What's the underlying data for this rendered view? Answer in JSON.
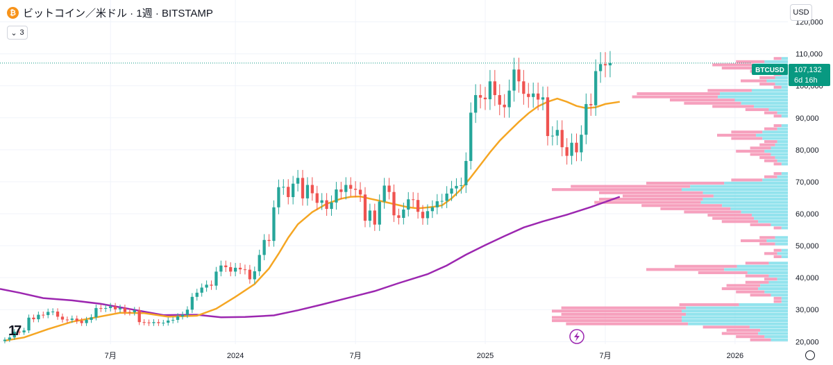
{
  "header": {
    "symbol_icon": "bitcoin-icon",
    "title": "ビットコイン／米ドル · 1週 · BITSTAMP",
    "indicator_toggle": "3",
    "currency": "USD"
  },
  "price_tag": {
    "ticker": "BTCUSD",
    "price": "107,132",
    "countdown": "6d 16h"
  },
  "colors": {
    "up": "#26a69a",
    "down": "#ef5350",
    "ma_fast": "#f5a623",
    "ma_slow": "#9c27b0",
    "vp_up": "#80deea",
    "vp_down": "#f48fb1",
    "price_line": "#089981"
  },
  "chart_data": {
    "type": "candlestick",
    "symbol": "BTCUSD",
    "y_ticks": [
      20000,
      30000,
      40000,
      50000,
      60000,
      70000,
      80000,
      90000,
      100000,
      110000,
      120000
    ],
    "y_tick_labels": [
      "20,000",
      "30,000",
      "40,000",
      "50,000",
      "60,000",
      "70,000",
      "80,000",
      "90,000",
      "100,000",
      "110,000",
      "120,000"
    ],
    "ylim": [
      19200,
      122500
    ],
    "x_labels": [
      {
        "week": 22,
        "label": "7月"
      },
      {
        "week": 48,
        "label": "2024"
      },
      {
        "week": 73,
        "label": "7月"
      },
      {
        "week": 100,
        "label": "2025"
      },
      {
        "week": 125,
        "label": "7月"
      },
      {
        "week": 152,
        "label": "2026"
      }
    ],
    "xlim": [
      -1,
      163
    ],
    "last_price": 107132,
    "closes": [
      20600,
      21300,
      23100,
      22900,
      23500,
      27500,
      27000,
      28400,
      28300,
      29300,
      29400,
      27800,
      26900,
      26800,
      27200,
      26500,
      25800,
      26800,
      27600,
      30500,
      30300,
      30500,
      31000,
      30100,
      30500,
      29300,
      29200,
      29800,
      26100,
      26000,
      25800,
      26100,
      25800,
      25900,
      26600,
      26800,
      27900,
      28400,
      30000,
      34000,
      35300,
      36900,
      37800,
      37500,
      41900,
      43800,
      43300,
      41900,
      43100,
      42600,
      42500,
      39500,
      42000,
      47100,
      51800,
      51500,
      62000,
      68300,
      68400,
      65200,
      69400,
      71200,
      64800,
      69000,
      66400,
      63400,
      64200,
      61500,
      63500,
      67600,
      66800,
      69000,
      67800,
      67500,
      66000,
      57800,
      61000,
      56600,
      63800,
      68800,
      66800,
      59500,
      58700,
      61300,
      64500,
      64300,
      60600,
      58600,
      60800,
      62000,
      63900,
      64000,
      66300,
      67900,
      68700,
      68900,
      76500,
      91600,
      97100,
      96300,
      95800,
      101400,
      97100,
      94100,
      93300,
      98500,
      105100,
      101400,
      97500,
      96500,
      97600,
      95700,
      96400,
      84300,
      84400,
      86200,
      80800,
      78100,
      82200,
      79200,
      84700,
      94300,
      93900,
      104600,
      106800,
      106400,
      107132
    ],
    "ma_fast_points": [
      [
        0,
        20300
      ],
      [
        4,
        21300
      ],
      [
        9,
        23900
      ],
      [
        14,
        26200
      ],
      [
        19,
        27600
      ],
      [
        24,
        29000
      ],
      [
        29,
        28900
      ],
      [
        34,
        27800
      ],
      [
        40,
        28100
      ],
      [
        44,
        30300
      ],
      [
        48,
        34000
      ],
      [
        52,
        38000
      ],
      [
        55,
        42900
      ],
      [
        57,
        47500
      ],
      [
        59,
        52500
      ],
      [
        61,
        56700
      ],
      [
        64,
        60500
      ],
      [
        67,
        63100
      ],
      [
        70,
        64700
      ],
      [
        72,
        65300
      ],
      [
        74,
        65400
      ],
      [
        76,
        64700
      ],
      [
        79,
        63700
      ],
      [
        82,
        62700
      ],
      [
        84,
        62000
      ],
      [
        86,
        61700
      ],
      [
        89,
        62100
      ],
      [
        91,
        62600
      ],
      [
        93,
        64800
      ],
      [
        95,
        67700
      ],
      [
        97,
        71400
      ],
      [
        99,
        75300
      ],
      [
        101,
        79200
      ],
      [
        103,
        82800
      ],
      [
        105,
        85800
      ],
      [
        107,
        88700
      ],
      [
        109,
        91400
      ],
      [
        111,
        93600
      ],
      [
        113,
        95000
      ],
      [
        115,
        96000
      ],
      [
        117,
        95000
      ],
      [
        119,
        93700
      ],
      [
        121,
        93000
      ],
      [
        123,
        93300
      ],
      [
        125,
        94300
      ],
      [
        128,
        95000
      ]
    ],
    "ma_slow_points": [
      [
        -1,
        36500
      ],
      [
        3,
        35300
      ],
      [
        8,
        33600
      ],
      [
        14,
        32900
      ],
      [
        20,
        31800
      ],
      [
        26,
        30200
      ],
      [
        33,
        28300
      ],
      [
        40,
        28400
      ],
      [
        45,
        27600
      ],
      [
        50,
        27700
      ],
      [
        56,
        28200
      ],
      [
        61,
        29800
      ],
      [
        66,
        31600
      ],
      [
        71,
        33500
      ],
      [
        77,
        35800
      ],
      [
        82,
        38300
      ],
      [
        88,
        41100
      ],
      [
        92,
        43800
      ],
      [
        96,
        47200
      ],
      [
        100,
        50200
      ],
      [
        104,
        53000
      ],
      [
        108,
        55700
      ],
      [
        112,
        57600
      ],
      [
        117,
        59700
      ],
      [
        122,
        62100
      ],
      [
        128,
        65300
      ]
    ]
  }
}
